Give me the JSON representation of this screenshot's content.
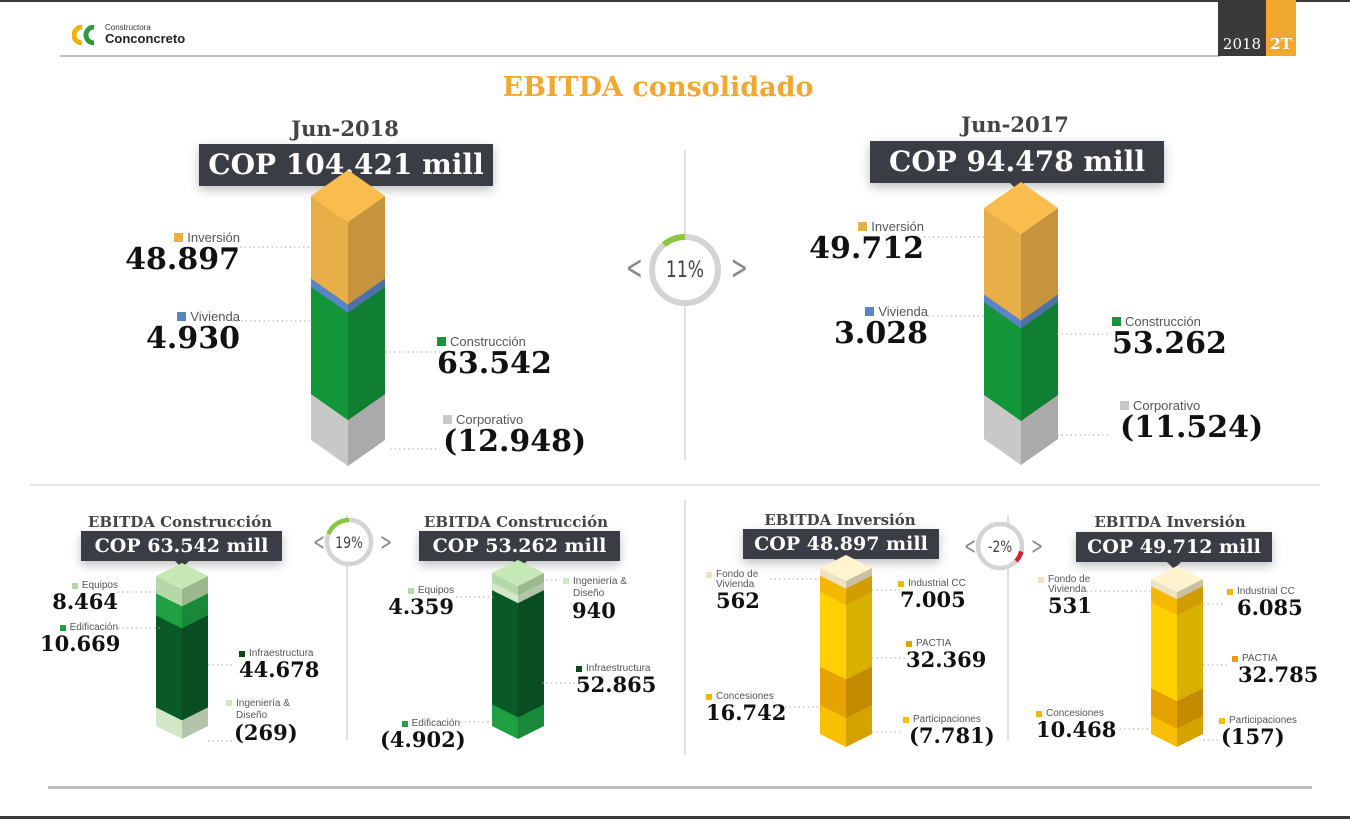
{
  "header": {
    "logo": {
      "small": "Constructora",
      "big": "Conconcreto"
    },
    "badge": {
      "year": "2018",
      "quarter": "2T"
    },
    "title": "EBITDA consolidado"
  },
  "colors": {
    "accent": "#f0a830",
    "dark": "#3a3d44",
    "inversion": "#e8ae48",
    "vivienda": "#5b84c4",
    "construccion": "#13953a",
    "corporativo": "#c8c8c8",
    "equipos": "#b6d8a8",
    "edificacion": "#1ea043",
    "infraestructura": "#0a5a28",
    "ingenieria": "#d2e6c8",
    "fondo": "#efe2c0",
    "industrial": "#f5b800",
    "pactia": "#e6a200",
    "concesiones": "#f2b600",
    "participaciones": "#f8c000",
    "positive": "#8cc63f",
    "negative": "#d32030"
  },
  "chart_data": [
    {
      "type": "bar",
      "title": "Jun-2018",
      "total_label": "COP 104.421 mill",
      "total": 104421,
      "categories": [
        "Inversión",
        "Vivienda",
        "Construcción",
        "Corporativo"
      ],
      "values": [
        48897,
        4930,
        63542,
        -12948
      ],
      "value_labels": [
        "48.897",
        "4.930",
        "63.542",
        "(12.948)"
      ]
    },
    {
      "type": "bar",
      "title": "Jun-2017",
      "total_label": "COP 94.478 mill",
      "total": 94478,
      "categories": [
        "Inversión",
        "Vivienda",
        "Construcción",
        "Corporativo"
      ],
      "values": [
        49712,
        3028,
        53262,
        -11524
      ],
      "value_labels": [
        "49.712",
        "3.028",
        "53.262",
        "(11.524)"
      ]
    },
    {
      "type": "bar",
      "title": "EBITDA Construcción",
      "total_label": "COP 63.542 mill",
      "total": 63542,
      "categories": [
        "Equipos",
        "Edificación",
        "Infraestructura",
        "Ingeniería & Diseño"
      ],
      "values": [
        8464,
        10669,
        44678,
        -269
      ],
      "value_labels": [
        "8.464",
        "10.669",
        "44.678",
        "(269)"
      ]
    },
    {
      "type": "bar",
      "title": "EBITDA Construcción",
      "total_label": "COP 53.262 mill",
      "total": 53262,
      "categories": [
        "Equipos",
        "Ingeniería & Diseño",
        "Infraestructura",
        "Edificación"
      ],
      "values": [
        4359,
        940,
        52865,
        -4902
      ],
      "value_labels": [
        "4.359",
        "940",
        "52.865",
        "(4.902)"
      ]
    },
    {
      "type": "bar",
      "title": "EBITDA Inversión",
      "total_label": "COP 48.897 mill",
      "total": 48897,
      "categories": [
        "Fondo de Vivienda",
        "Industrial CC",
        "PACTIA",
        "Concesiones",
        "Participaciones"
      ],
      "values": [
        562,
        7005,
        32369,
        16742,
        -7781
      ],
      "value_labels": [
        "562",
        "7.005",
        "32.369",
        "16.742",
        "(7.781)"
      ]
    },
    {
      "type": "bar",
      "title": "EBITDA Inversión",
      "total_label": "COP 49.712 mill",
      "total": 49712,
      "categories": [
        "Fondo de Vivienda",
        "Industrial CC",
        "PACTIA",
        "Concesiones",
        "Participaciones"
      ],
      "values": [
        531,
        6085,
        32785,
        10468,
        -157
      ],
      "value_labels": [
        "531",
        "6.085",
        "32.785",
        "10.468",
        "(157)"
      ]
    }
  ],
  "variations": {
    "consolidado": {
      "label": "11%",
      "value": 0.11
    },
    "construccion": {
      "label": "19%",
      "value": 0.19
    },
    "inversion": {
      "label": "-2%",
      "value": -0.02
    }
  },
  "nav": {
    "prev": "<",
    "next": ">"
  }
}
